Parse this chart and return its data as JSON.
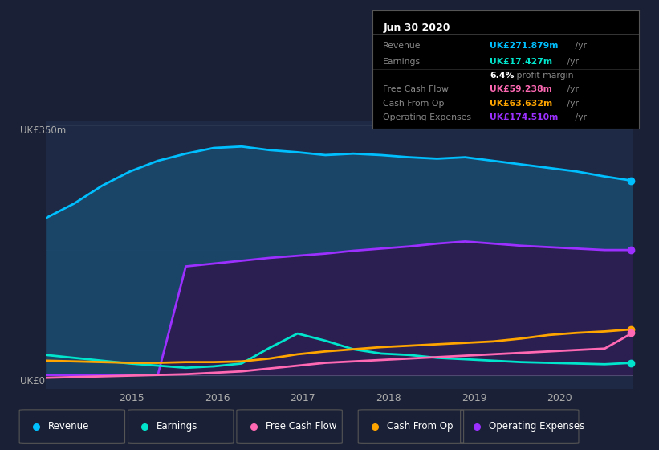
{
  "bg_color": "#1a2035",
  "plot_bg_color": "#1e2a45",
  "ylabel": "UK£350m",
  "ylabel_zero": "UK£0",
  "x_ticks": [
    2015,
    2016,
    2017,
    2018,
    2019,
    2020
  ],
  "series": {
    "revenue": {
      "color": "#00bfff",
      "fill_color": "#1a4a6e",
      "label": "Revenue",
      "values": [
        220,
        240,
        265,
        285,
        300,
        310,
        318,
        320,
        315,
        312,
        308,
        310,
        308,
        305,
        303,
        305,
        300,
        295,
        290,
        285,
        278,
        272
      ]
    },
    "operating_expenses": {
      "color": "#9b30ff",
      "fill_color": "#2d1b4e",
      "label": "Operating Expenses",
      "values": [
        0,
        0,
        0,
        0,
        0,
        152,
        156,
        160,
        164,
        167,
        170,
        174,
        177,
        180,
        184,
        187,
        184,
        181,
        179,
        177,
        175,
        175
      ]
    },
    "earnings": {
      "color": "#00e5cc",
      "fill_color": "#006655",
      "label": "Earnings",
      "values": [
        28,
        24,
        20,
        16,
        13,
        10,
        12,
        16,
        38,
        58,
        48,
        36,
        30,
        28,
        24,
        22,
        20,
        18,
        17,
        16,
        15,
        17
      ]
    },
    "cash_from_op": {
      "color": "#ffa500",
      "fill_color": "#664200",
      "label": "Cash From Op",
      "values": [
        20,
        19,
        18,
        17,
        17,
        18,
        18,
        19,
        23,
        29,
        33,
        36,
        39,
        41,
        43,
        45,
        47,
        51,
        56,
        59,
        61,
        64
      ]
    },
    "free_cash_flow": {
      "color": "#ff69b4",
      "fill_color": "#660033",
      "label": "Free Cash Flow",
      "values": [
        -4,
        -3,
        -2,
        -1,
        0,
        1,
        3,
        5,
        9,
        13,
        17,
        19,
        21,
        23,
        25,
        27,
        29,
        31,
        33,
        35,
        37,
        59
      ]
    }
  },
  "tooltip": {
    "date": "Jun 30 2020",
    "revenue": "UK£271.879m",
    "earnings": "UK£17.427m",
    "profit_margin": "6.4%",
    "free_cash_flow": "UK£59.238m",
    "cash_from_op": "UK£63.632m",
    "operating_expenses": "UK£174.510m"
  },
  "colors": {
    "revenue": "#00bfff",
    "earnings": "#00e5cc",
    "free_cash_flow": "#ff69b4",
    "cash_from_op": "#ffa500",
    "operating_expenses": "#9b30ff"
  },
  "legend_items": [
    [
      "Revenue",
      "#00bfff"
    ],
    [
      "Earnings",
      "#00e5cc"
    ],
    [
      "Free Cash Flow",
      "#ff69b4"
    ],
    [
      "Cash From Op",
      "#ffa500"
    ],
    [
      "Operating Expenses",
      "#9b30ff"
    ]
  ]
}
